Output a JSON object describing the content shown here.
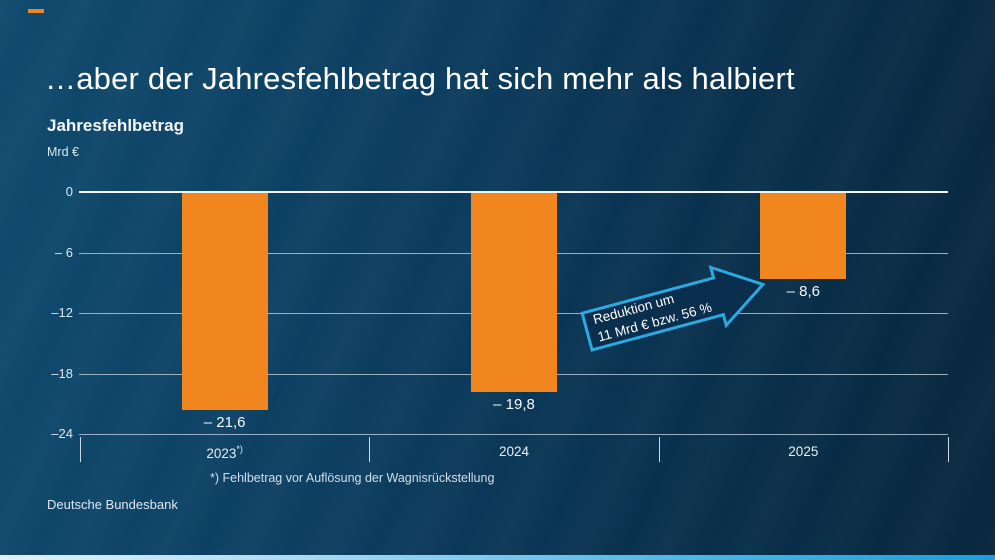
{
  "slide": {
    "title": "…aber der Jahresfehlbetrag hat sich mehr als halbiert",
    "source": "Deutsche Bundesbank"
  },
  "chart": {
    "title": "Jahresfehlbetrag",
    "unit": "Mrd €",
    "footnote": "*) Fehlbetrag vor Auflösung der Wagnisrückstellung",
    "y_tick_labels": [
      "0",
      "– 6",
      "–12",
      "–18",
      "–24"
    ]
  },
  "annotation": {
    "line1": "Reduktion um",
    "line2": "11 Mrd € bzw. 56 %"
  },
  "colors": {
    "bar": "#F0861D",
    "accent_dash": "#F0861D",
    "arrow_outline": "#2BA9E0",
    "arrow_fill": "#0A2E4D"
  },
  "chart_data": {
    "type": "bar",
    "title": "Jahresfehlbetrag",
    "ylabel": "Mrd €",
    "categories": [
      "2023",
      "2024",
      "2025"
    ],
    "category_notes": [
      "*)",
      "",
      ""
    ],
    "values": [
      -21.6,
      -19.8,
      -8.6
    ],
    "data_labels": [
      "– 21,6",
      "– 19,8",
      "– 8,6"
    ],
    "ylim": [
      -24,
      0
    ],
    "yticks": [
      0,
      -6,
      -12,
      -18,
      -24
    ],
    "grid": true,
    "legend": false,
    "bar_color": "#F0861D",
    "annotation": "Reduktion um 11 Mrd € bzw. 56 %"
  }
}
